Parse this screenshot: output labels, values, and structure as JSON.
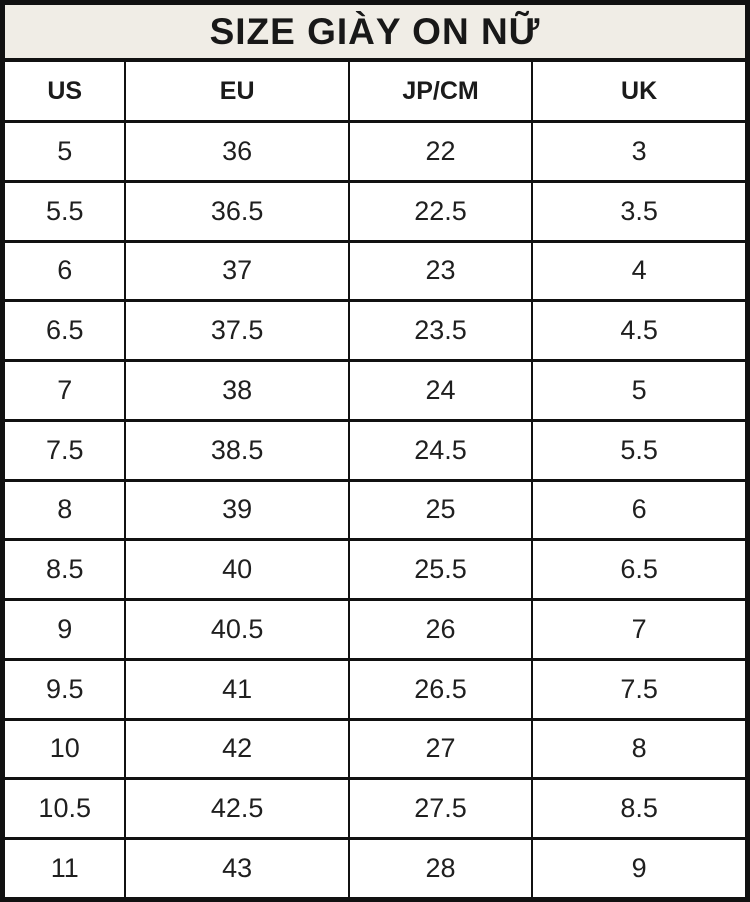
{
  "title": "SIZE GIÀY ON NỮ",
  "colors": {
    "title_background": "#f0ede6",
    "table_background": "#ffffff",
    "border": "#111111",
    "text": "#1b1b1b"
  },
  "table": {
    "headers": [
      "US",
      "EU",
      "JP/CM",
      "UK"
    ],
    "rows": [
      [
        "5",
        "36",
        "22",
        "3"
      ],
      [
        "5.5",
        "36.5",
        "22.5",
        "3.5"
      ],
      [
        "6",
        "37",
        "23",
        "4"
      ],
      [
        "6.5",
        "37.5",
        "23.5",
        "4.5"
      ],
      [
        "7",
        "38",
        "24",
        "5"
      ],
      [
        "7.5",
        "38.5",
        "24.5",
        "5.5"
      ],
      [
        "8",
        "39",
        "25",
        "6"
      ],
      [
        "8.5",
        "40",
        "25.5",
        "6.5"
      ],
      [
        "9",
        "40.5",
        "26",
        "7"
      ],
      [
        "9.5",
        "41",
        "26.5",
        "7.5"
      ],
      [
        "10",
        "42",
        "27",
        "8"
      ],
      [
        "10.5",
        "42.5",
        "27.5",
        "8.5"
      ],
      [
        "11",
        "43",
        "28",
        "9"
      ]
    ]
  },
  "chart_data": {
    "type": "table",
    "title": "SIZE GIÀY ON NỮ",
    "columns": [
      "US",
      "EU",
      "JP/CM",
      "UK"
    ],
    "rows": [
      [
        5,
        36,
        22,
        3
      ],
      [
        5.5,
        36.5,
        22.5,
        3.5
      ],
      [
        6,
        37,
        23,
        4
      ],
      [
        6.5,
        37.5,
        23.5,
        4.5
      ],
      [
        7,
        38,
        24,
        5
      ],
      [
        7.5,
        38.5,
        24.5,
        5.5
      ],
      [
        8,
        39,
        25,
        6
      ],
      [
        8.5,
        40,
        25.5,
        6.5
      ],
      [
        9,
        40.5,
        26,
        7
      ],
      [
        9.5,
        41,
        26.5,
        7.5
      ],
      [
        10,
        42,
        27,
        8
      ],
      [
        10.5,
        42.5,
        27.5,
        8.5
      ],
      [
        11,
        43,
        28,
        9
      ]
    ]
  }
}
